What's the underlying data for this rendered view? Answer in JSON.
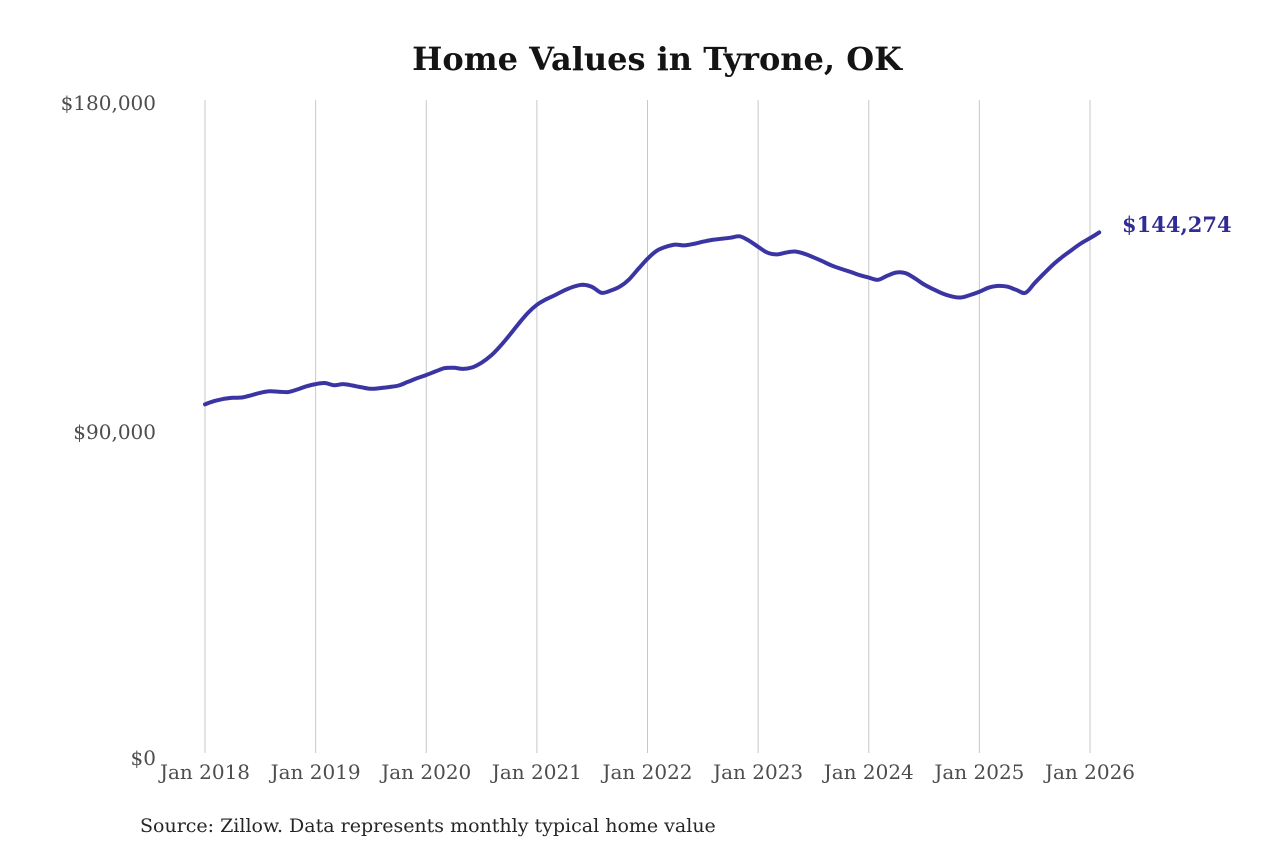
{
  "chart": {
    "title": "Home Values in Tyrone, OK",
    "source": "Source: Zillow. Data represents monthly typical home value",
    "end_label": "$144,274",
    "line_color": "#3b35a3",
    "end_label_color": "#312c94",
    "grid_color": "#c8c8c8",
    "axis_text_color": "#4d4d4d",
    "y_ticks": [
      {
        "label": "$180,000",
        "value": 180000
      },
      {
        "label": "$90,000",
        "value": 90000
      },
      {
        "label": "$0",
        "value": 0
      }
    ]
  },
  "chart_data": {
    "type": "line",
    "title": "Home Values in Tyrone, OK",
    "series_name": "Monthly typical home value (USD)",
    "xlabel": "",
    "ylabel": "",
    "ylim": [
      0,
      180000
    ],
    "y_tick_values": [
      0,
      90000,
      180000
    ],
    "grid": "vertical-yearly",
    "legend_position": "none",
    "x_tick_labels": [
      "Jan 2018",
      "Jan 2019",
      "Jan 2020",
      "Jan 2021",
      "Jan 2022",
      "Jan 2023",
      "Jan 2024",
      "Jan 2025",
      "Jan 2026"
    ],
    "end_annotation": "$144,274",
    "months": [
      "2018-01",
      "2018-02",
      "2018-03",
      "2018-04",
      "2018-05",
      "2018-06",
      "2018-07",
      "2018-08",
      "2018-09",
      "2018-10",
      "2018-11",
      "2018-12",
      "2019-01",
      "2019-02",
      "2019-03",
      "2019-04",
      "2019-05",
      "2019-06",
      "2019-07",
      "2019-08",
      "2019-09",
      "2019-10",
      "2019-11",
      "2019-12",
      "2020-01",
      "2020-02",
      "2020-03",
      "2020-04",
      "2020-05",
      "2020-06",
      "2020-07",
      "2020-08",
      "2020-09",
      "2020-10",
      "2020-11",
      "2020-12",
      "2021-01",
      "2021-02",
      "2021-03",
      "2021-04",
      "2021-05",
      "2021-06",
      "2021-07",
      "2021-08",
      "2021-09",
      "2021-10",
      "2021-11",
      "2021-12",
      "2022-01",
      "2022-02",
      "2022-03",
      "2022-04",
      "2022-05",
      "2022-06",
      "2022-07",
      "2022-08",
      "2022-09",
      "2022-10",
      "2022-11",
      "2022-12",
      "2023-01",
      "2023-02",
      "2023-03",
      "2023-04",
      "2023-05",
      "2023-06",
      "2023-07",
      "2023-08",
      "2023-09",
      "2023-10",
      "2023-11",
      "2023-12",
      "2024-01",
      "2024-02",
      "2024-03",
      "2024-04",
      "2024-05",
      "2024-06",
      "2024-07",
      "2024-08",
      "2024-09",
      "2024-10",
      "2024-11",
      "2024-12",
      "2025-01",
      "2025-02",
      "2025-03",
      "2025-04",
      "2025-05",
      "2025-06",
      "2025-07",
      "2025-08",
      "2025-09",
      "2025-10",
      "2025-11",
      "2025-12",
      "2026-01",
      "2026-02"
    ],
    "values": [
      96800,
      97700,
      98300,
      98600,
      98700,
      99300,
      100000,
      100400,
      100300,
      100200,
      100900,
      101800,
      102400,
      102700,
      102100,
      102400,
      102000,
      101500,
      101100,
      101300,
      101600,
      102000,
      103000,
      104000,
      104900,
      105900,
      106800,
      106900,
      106600,
      107000,
      108300,
      110200,
      112800,
      115800,
      119000,
      122000,
      124300,
      125800,
      127000,
      128300,
      129300,
      129800,
      129200,
      127600,
      128200,
      129300,
      131300,
      134200,
      137000,
      139200,
      140300,
      140900,
      140700,
      141100,
      141700,
      142200,
      142500,
      142800,
      143200,
      142000,
      140300,
      138700,
      138200,
      138700,
      139000,
      138400,
      137400,
      136300,
      135100,
      134200,
      133400,
      132500,
      131800,
      131200,
      132300,
      133200,
      133000,
      131600,
      129900,
      128600,
      127400,
      126600,
      126300,
      127000,
      127900,
      129000,
      129500,
      129300,
      128400,
      127600,
      130300,
      132900,
      135400,
      137500,
      139400,
      141200,
      142700,
      144274
    ]
  }
}
